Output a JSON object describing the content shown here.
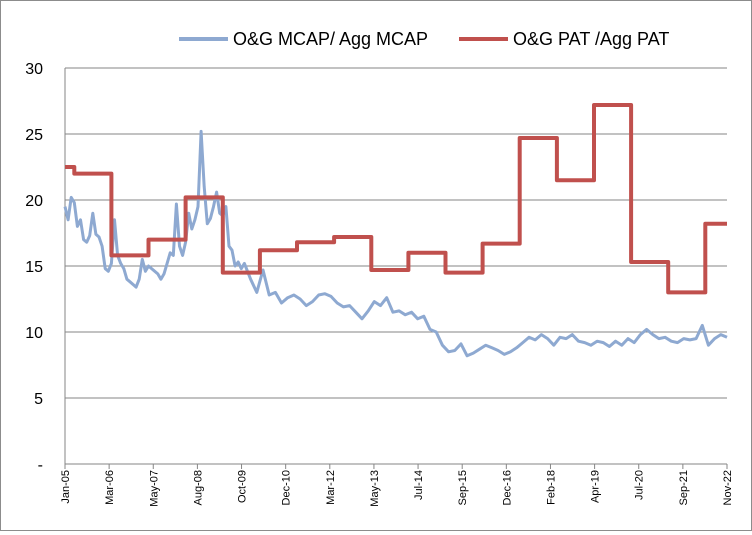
{
  "chart_data": {
    "type": "line",
    "title": "",
    "xlabel": "",
    "ylabel": "",
    "ylim": [
      0,
      30
    ],
    "y_ticks": [
      {
        "value": 0,
        "label": "-"
      },
      {
        "value": 5,
        "label": "5"
      },
      {
        "value": 10,
        "label": "10"
      },
      {
        "value": 15,
        "label": "15"
      },
      {
        "value": 20,
        "label": "20"
      },
      {
        "value": 25,
        "label": "25"
      },
      {
        "value": 30,
        "label": "30"
      }
    ],
    "x_start": "Jan-05",
    "x_end": "Nov-22",
    "x_tick_labels": [
      "Jan-05",
      "Mar-06",
      "May-07",
      "Aug-08",
      "Oct-09",
      "Dec-10",
      "Mar-12",
      "May-13",
      "Jul-14",
      "Sep-15",
      "Dec-16",
      "Feb-18",
      "Apr-19",
      "Jul-20",
      "Sep-21",
      "Nov-22"
    ],
    "grid": true,
    "legend_position": "top",
    "series": [
      {
        "name": "O&G MCAP/ Agg MCAP",
        "color": "#8EA9D1",
        "x": [
          0,
          1,
          2,
          3,
          4,
          5,
          6,
          7,
          8,
          9,
          10,
          11,
          12,
          13,
          14,
          15,
          16,
          17,
          18,
          19,
          20,
          21,
          22,
          23,
          24,
          25,
          26,
          27,
          28,
          29,
          30,
          31,
          32,
          33,
          34,
          35,
          36,
          37,
          38,
          39,
          40,
          41,
          42,
          43,
          44,
          45,
          46,
          47,
          48,
          49,
          50,
          51,
          52,
          53,
          54,
          55,
          56,
          57,
          58,
          59,
          60,
          62,
          64,
          66,
          68,
          70,
          72,
          74,
          76,
          78,
          80,
          82,
          84,
          86,
          88,
          90,
          92,
          94,
          96,
          98,
          100,
          102,
          104,
          106,
          108,
          110,
          112,
          114,
          116,
          118,
          120,
          122,
          124,
          126,
          128,
          130,
          132,
          134,
          136,
          138,
          140,
          142,
          144,
          146,
          148,
          150,
          152,
          154,
          156,
          158,
          160,
          162,
          164,
          166,
          168,
          170,
          172,
          174,
          176,
          178,
          180,
          182,
          184,
          186,
          188,
          190,
          192,
          194,
          196,
          198,
          200,
          202,
          204,
          206,
          208,
          210,
          212,
          214
        ],
        "values": [
          19.5,
          18.5,
          20.2,
          19.8,
          18.0,
          18.5,
          17.0,
          16.8,
          17.3,
          19.0,
          17.4,
          17.2,
          16.5,
          14.8,
          14.6,
          15.2,
          18.5,
          15.8,
          15.2,
          14.8,
          14.0,
          13.8,
          13.6,
          13.4,
          14.0,
          15.5,
          14.6,
          15.0,
          14.8,
          14.6,
          14.4,
          14.0,
          14.4,
          15.2,
          16.0,
          15.8,
          19.7,
          16.5,
          15.8,
          16.8,
          19.0,
          17.8,
          18.5,
          19.5,
          25.2,
          21.0,
          18.2,
          18.6,
          19.5,
          20.6,
          19.0,
          18.8,
          19.5,
          16.5,
          16.2,
          15.0,
          15.3,
          14.8,
          15.2,
          14.6,
          14.0,
          13.0,
          14.7,
          12.8,
          13.0,
          12.2,
          12.6,
          12.8,
          12.5,
          12.0,
          12.3,
          12.8,
          12.9,
          12.7,
          12.2,
          11.9,
          12.0,
          11.5,
          11.0,
          11.6,
          12.3,
          12.0,
          12.6,
          11.5,
          11.6,
          11.3,
          11.5,
          11.0,
          11.2,
          10.2,
          10.0,
          9.0,
          8.5,
          8.6,
          9.1,
          8.2,
          8.4,
          8.7,
          9.0,
          8.8,
          8.6,
          8.3,
          8.5,
          8.8,
          9.2,
          9.6,
          9.4,
          9.8,
          9.5,
          9.0,
          9.6,
          9.5,
          9.8,
          9.3,
          9.2,
          9.0,
          9.3,
          9.2,
          8.9,
          9.3,
          9.0,
          9.5,
          9.2,
          9.8,
          10.2,
          9.8,
          9.5,
          9.6,
          9.3,
          9.2,
          9.5,
          9.4,
          9.5,
          10.5,
          9.0,
          9.5,
          9.8,
          9.6
        ]
      },
      {
        "name": "O&G PAT /Agg PAT",
        "color": "#C0504D",
        "x": [
          0,
          3,
          3,
          15,
          15,
          27,
          27,
          39,
          39,
          51,
          51,
          63,
          63,
          75,
          75,
          87,
          87,
          99,
          99,
          111,
          111,
          123,
          123,
          135,
          135,
          147,
          147,
          159,
          159,
          171,
          171,
          183,
          183,
          195,
          195,
          207,
          207,
          214
        ],
        "values": [
          22.5,
          22.5,
          22.0,
          22.0,
          15.8,
          15.8,
          17.0,
          17.0,
          20.2,
          20.2,
          14.5,
          14.5,
          16.2,
          16.2,
          16.8,
          16.8,
          17.2,
          17.2,
          14.7,
          14.7,
          16.0,
          16.0,
          14.5,
          14.5,
          16.7,
          16.7,
          24.7,
          24.7,
          21.5,
          21.5,
          27.2,
          27.2,
          15.3,
          15.3,
          13.0,
          13.0,
          18.2,
          18.2
        ]
      }
    ]
  }
}
